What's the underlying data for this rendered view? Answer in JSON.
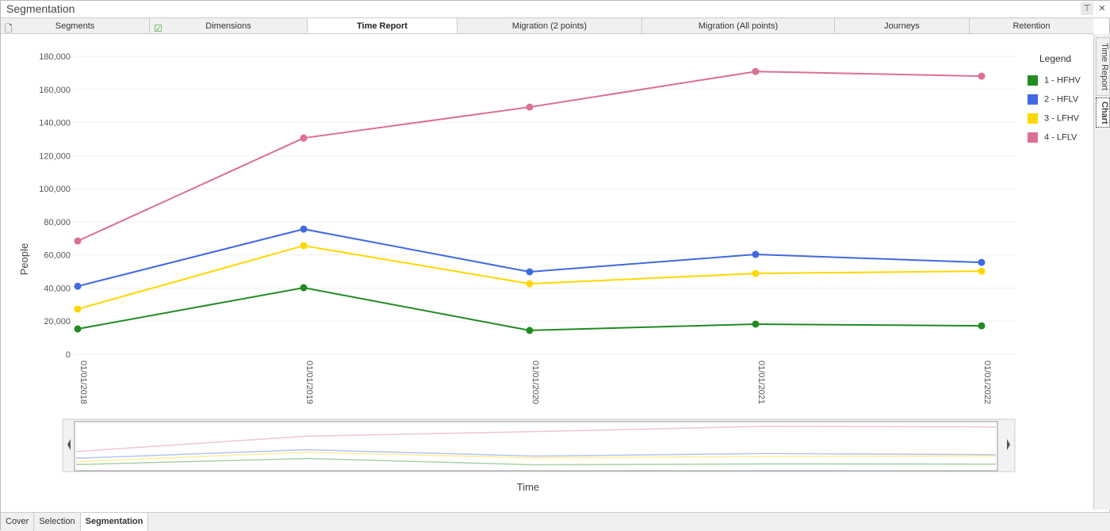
{
  "window": {
    "title": "Segmentation",
    "pin_icon": "pin-icon",
    "close_icon": "close-icon"
  },
  "tabs": [
    {
      "label": "Segments",
      "icon": "document-icon"
    },
    {
      "label": "Dimensions",
      "icon": "checkbox-icon"
    },
    {
      "label": "Time Report",
      "active": true
    },
    {
      "label": "Migration (2 points)"
    },
    {
      "label": "Migration (All points)"
    },
    {
      "label": "Journeys"
    },
    {
      "label": "Retention"
    }
  ],
  "side_tabs": [
    {
      "label": "Time Report"
    },
    {
      "label": "Chart",
      "active": true
    }
  ],
  "bottom_tabs": [
    {
      "label": "Cover"
    },
    {
      "label": "Selection"
    },
    {
      "label": "Segmentation",
      "active": true
    }
  ],
  "chart_data": {
    "type": "line",
    "xlabel": "Time",
    "ylabel": "People",
    "x": [
      "01/01/2018",
      "01/01/2019",
      "01/01/2020",
      "01/01/2021",
      "01/01/2022"
    ],
    "yticks": [
      "0",
      "20,000",
      "40,000",
      "60,000",
      "80,000",
      "100,000",
      "120,000",
      "140,000",
      "160,000",
      "180,000"
    ],
    "ylim": [
      0,
      180000
    ],
    "legend_title": "Legend",
    "legend_position": "right",
    "series": [
      {
        "name": "1 - HFHV",
        "color": "#228B22",
        "values": [
          15300,
          40200,
          14400,
          18200,
          17200
        ]
      },
      {
        "name": "2 - HFLV",
        "color": "#4169E1",
        "values": [
          41100,
          75600,
          49800,
          60300,
          55500
        ]
      },
      {
        "name": "3 - LFHV",
        "color": "#FFD700",
        "values": [
          27300,
          65600,
          42600,
          48800,
          50200
        ]
      },
      {
        "name": "4 - LFLV",
        "color": "#DB7093",
        "values": [
          68400,
          130600,
          149300,
          170800,
          168000
        ]
      }
    ]
  }
}
